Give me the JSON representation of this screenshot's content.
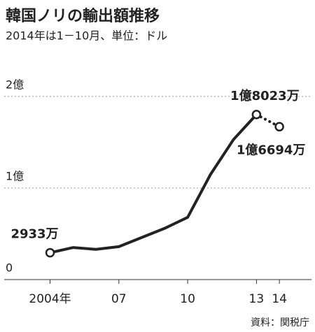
{
  "chart_data": {
    "type": "line",
    "title": "韓国ノリの輸出額推移",
    "subtitle": "2014年は1－10月、単位：ドル",
    "source": "資料：関税庁",
    "x": [
      2004,
      2005,
      2006,
      2007,
      2008,
      2009,
      2010,
      2011,
      2012,
      2013,
      2014
    ],
    "values": [
      29330000,
      35000000,
      33000000,
      36000000,
      46000000,
      56000000,
      68000000,
      115000000,
      153000000,
      180230000,
      166940000
    ],
    "value_labels": [
      "2933万",
      null,
      null,
      null,
      null,
      null,
      null,
      null,
      null,
      "1億8023万",
      "1億6694万"
    ],
    "color": "#222222",
    "last_segment_style": "dotted",
    "xlim": [
      2002,
      2015.4
    ],
    "xticks": [
      {
        "value": 2004,
        "label": "2004年"
      },
      {
        "value": 2007,
        "label": "07"
      },
      {
        "value": 2010,
        "label": "10"
      },
      {
        "value": 2013,
        "label": "13"
      },
      {
        "value": 2014,
        "label": "14"
      }
    ],
    "ylim": [
      0,
      200000000
    ],
    "yticks": [
      0,
      {
        "value": 100000000,
        "label": "1億"
      },
      {
        "value": 200000000,
        "label": "2億"
      }
    ],
    "grid": true
  }
}
